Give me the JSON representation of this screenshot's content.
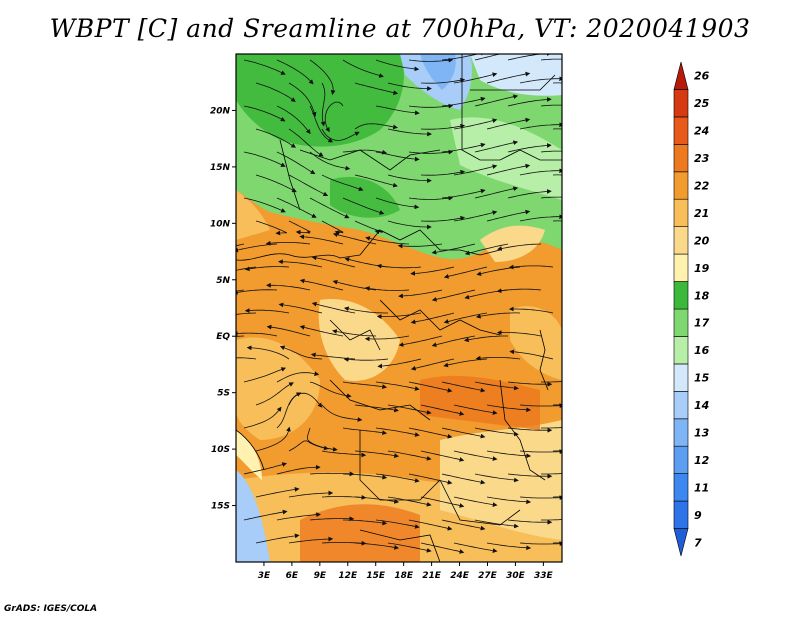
{
  "title": "WBPT [C] and Sreamline at 700hPa, VT: 2020041903",
  "credit": "GrADS: IGES/COLA",
  "map": {
    "lon_range": [
      0,
      35
    ],
    "lat_range": [
      -20,
      25
    ],
    "x_ticks": [
      {
        "lon": 3,
        "label": "3E"
      },
      {
        "lon": 6,
        "label": "6E"
      },
      {
        "lon": 9,
        "label": "9E"
      },
      {
        "lon": 12,
        "label": "12E"
      },
      {
        "lon": 15,
        "label": "15E"
      },
      {
        "lon": 18,
        "label": "18E"
      },
      {
        "lon": 21,
        "label": "21E"
      },
      {
        "lon": 24,
        "label": "24E"
      },
      {
        "lon": 27,
        "label": "27E"
      },
      {
        "lon": 30,
        "label": "30E"
      },
      {
        "lon": 33,
        "label": "33E"
      }
    ],
    "y_ticks": [
      {
        "lat": 20,
        "label": "20N"
      },
      {
        "lat": 15,
        "label": "15N"
      },
      {
        "lat": 10,
        "label": "10N"
      },
      {
        "lat": 5,
        "label": "5N"
      },
      {
        "lat": 0,
        "label": "EQ"
      },
      {
        "lat": -5,
        "label": "5S"
      },
      {
        "lat": -10,
        "label": "10S"
      },
      {
        "lat": -15,
        "label": "15S"
      }
    ]
  },
  "colorbar": {
    "levels": [
      "7",
      "9",
      "11",
      "12",
      "13",
      "14",
      "15",
      "16",
      "17",
      "18",
      "19",
      "20",
      "21",
      "22",
      "23",
      "24",
      "25",
      "26"
    ],
    "colors": [
      "#1e5fd8",
      "#2e74e8",
      "#3c87f0",
      "#5c9ef2",
      "#7fb5f5",
      "#a7cdf8",
      "#d3e8fb",
      "#b7efa9",
      "#7fd86f",
      "#3cb83a",
      "#fff2b0",
      "#fbd98a",
      "#f7be5a",
      "#f29b2e",
      "#ed7a1f",
      "#e85a1a",
      "#d63a12",
      "#b81a0a"
    ]
  }
}
